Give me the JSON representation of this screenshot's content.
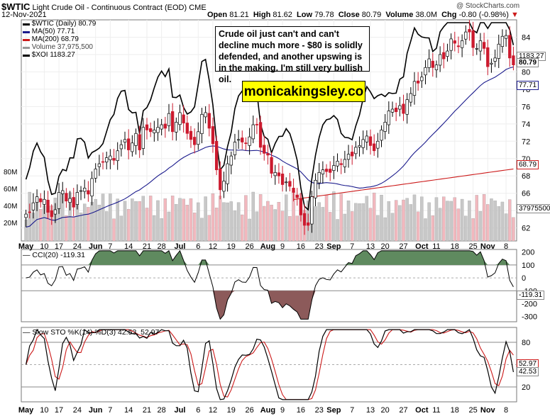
{
  "header": {
    "symbol": "$WTIC",
    "name": "Light Crude Oil - Continuous Contract (EOD)",
    "exchange": "CME",
    "date": "12-Nov-2021",
    "watermark": "@ StockCharts.com",
    "open_label": "Open",
    "open": "81.21",
    "high_label": "High",
    "high": "81.62",
    "low_label": "Low",
    "low": "79.78",
    "close_label": "Close",
    "close": "80.79",
    "volume_label": "Volume",
    "volume": "38.0M",
    "chg_label": "Chg",
    "chg": "-0.80 (-0.98%)"
  },
  "legend": [
    {
      "text": "$WTIC (Daily) 80.79",
      "color": "#000000"
    },
    {
      "text": "MA(50) 77.71",
      "color": "#1a1a8c"
    },
    {
      "text": "MA(200) 68.79",
      "color": "#cc1a1a"
    },
    {
      "text": "Volume 37,975,500",
      "color": "#999999"
    },
    {
      "text": "$XOI 1183.27",
      "color": "#000000"
    }
  ],
  "annotation": "Crude oil just can't and can't decline much more - $80 is solidly defended, and another upswing is in the making. I'm still very bullish oil.",
  "brand": "monicakingsley.co",
  "panels": {
    "cci_label": "CCI(20) -119.31",
    "sto_label": "Slow STO %K(14) %D(3) 42.53, 52.97",
    "sto_k": "42.53",
    "sto_d": "52.97"
  },
  "value_tags": {
    "xoi": "1183.27",
    "close": "80.79",
    "ma50": "77.71",
    "ma200": "68.79",
    "volume": "37975500",
    "cci": "-119.31"
  },
  "colors": {
    "up": "#ffffff",
    "down": "#cc1a2e",
    "ma50": "#1a1a8c",
    "ma200": "#cc1a1a",
    "volume": "#bbbbbb",
    "cci_fill_pos": "#5f8a5f",
    "cci_fill_neg": "#8c5a5a"
  },
  "chart_data": [
    {
      "type": "candlestick",
      "title": "$WTIC Light Crude Oil - Continuous Contract (EOD)",
      "x_labels": [
        "May",
        "10",
        "17",
        "24",
        "Jun",
        "7",
        "14",
        "21",
        "28",
        "Jul",
        "6",
        "12",
        "19",
        "26",
        "Aug",
        "9",
        "16",
        "23",
        "Sep",
        "7",
        "13",
        "20",
        "27",
        "Oct",
        "11",
        "18",
        "25",
        "Nov",
        "8"
      ],
      "y_ticks": [
        62,
        64,
        66,
        68,
        70,
        72,
        74,
        76,
        78,
        80,
        82,
        84
      ],
      "ylim": [
        60.5,
        86
      ],
      "close": [
        63.6,
        63.8,
        64.9,
        65.6,
        65.0,
        65.3,
        63.8,
        63.3,
        64.1,
        66.1,
        66.3,
        65.1,
        65.4,
        64.4,
        66.1,
        66.3,
        66.6,
        65.9,
        67.7,
        68.8,
        69.4,
        69.6,
        70.1,
        70.3,
        69.8,
        70.9,
        71.6,
        72.2,
        71.0,
        71.8,
        72.9,
        71.0,
        73.6,
        73.3,
        73.1,
        73.3,
        73.6,
        73.9,
        73.5,
        75.2,
        73.1,
        74.2,
        75.3,
        74.1,
        72.9,
        72.2,
        71.6,
        73.1,
        75.1,
        75.3,
        73.5,
        71.7,
        68.7,
        66.4,
        67.4,
        69.4,
        70.3,
        71.9,
        72.2,
        71.9,
        71.8,
        72.5,
        73.9,
        73.9,
        71.3,
        70.6,
        70.4,
        68.3,
        68.4,
        68.0,
        67.0,
        67.3,
        66.8,
        66.1,
        65.5,
        63.5,
        62.3,
        62.3,
        65.6,
        67.5,
        68.4,
        68.7,
        68.5,
        68.4,
        69.2,
        69.7,
        69.3,
        69.9,
        70.5,
        70.3,
        71.3,
        71.5,
        72.2,
        72.6,
        71.5,
        70.9,
        72.0,
        73.3,
        74.2,
        75.5,
        75.7,
        75.4,
        76.1,
        75.2,
        76.8,
        77.5,
        78.9,
        78.7,
        79.4,
        80.5,
        81.5,
        80.5,
        80.8,
        82.0,
        81.5,
        82.4,
        83.8,
        83.3,
        82.9,
        83.6,
        84.6,
        84.6,
        82.8,
        82.7,
        83.6,
        82.7,
        80.6,
        81.0,
        81.6,
        83.2,
        84.1,
        84.2,
        81.6,
        80.8
      ]
    },
    {
      "type": "line",
      "series": [
        {
          "name": "MA(50)",
          "last": 77.71
        },
        {
          "name": "MA(200)",
          "last": 68.79
        },
        {
          "name": "$XOI",
          "last": 1183.27
        }
      ]
    },
    {
      "type": "bar",
      "series": [
        {
          "name": "Volume",
          "last": 37975500
        }
      ],
      "y_ticks": [
        "20M",
        "40M",
        "60M",
        "80M"
      ]
    },
    {
      "type": "area",
      "series": [
        {
          "name": "CCI(20)",
          "last": -119.31
        }
      ],
      "y_ticks": [
        -300,
        -200,
        -100,
        0,
        100,
        200
      ],
      "ylim": [
        -340,
        220
      ]
    },
    {
      "type": "line",
      "series": [
        {
          "name": "%K(14)",
          "last": 42.53
        },
        {
          "name": "%D(3)",
          "last": 52.97
        }
      ],
      "y_ticks": [
        20,
        50,
        80
      ],
      "ylim": [
        0,
        100
      ]
    }
  ]
}
